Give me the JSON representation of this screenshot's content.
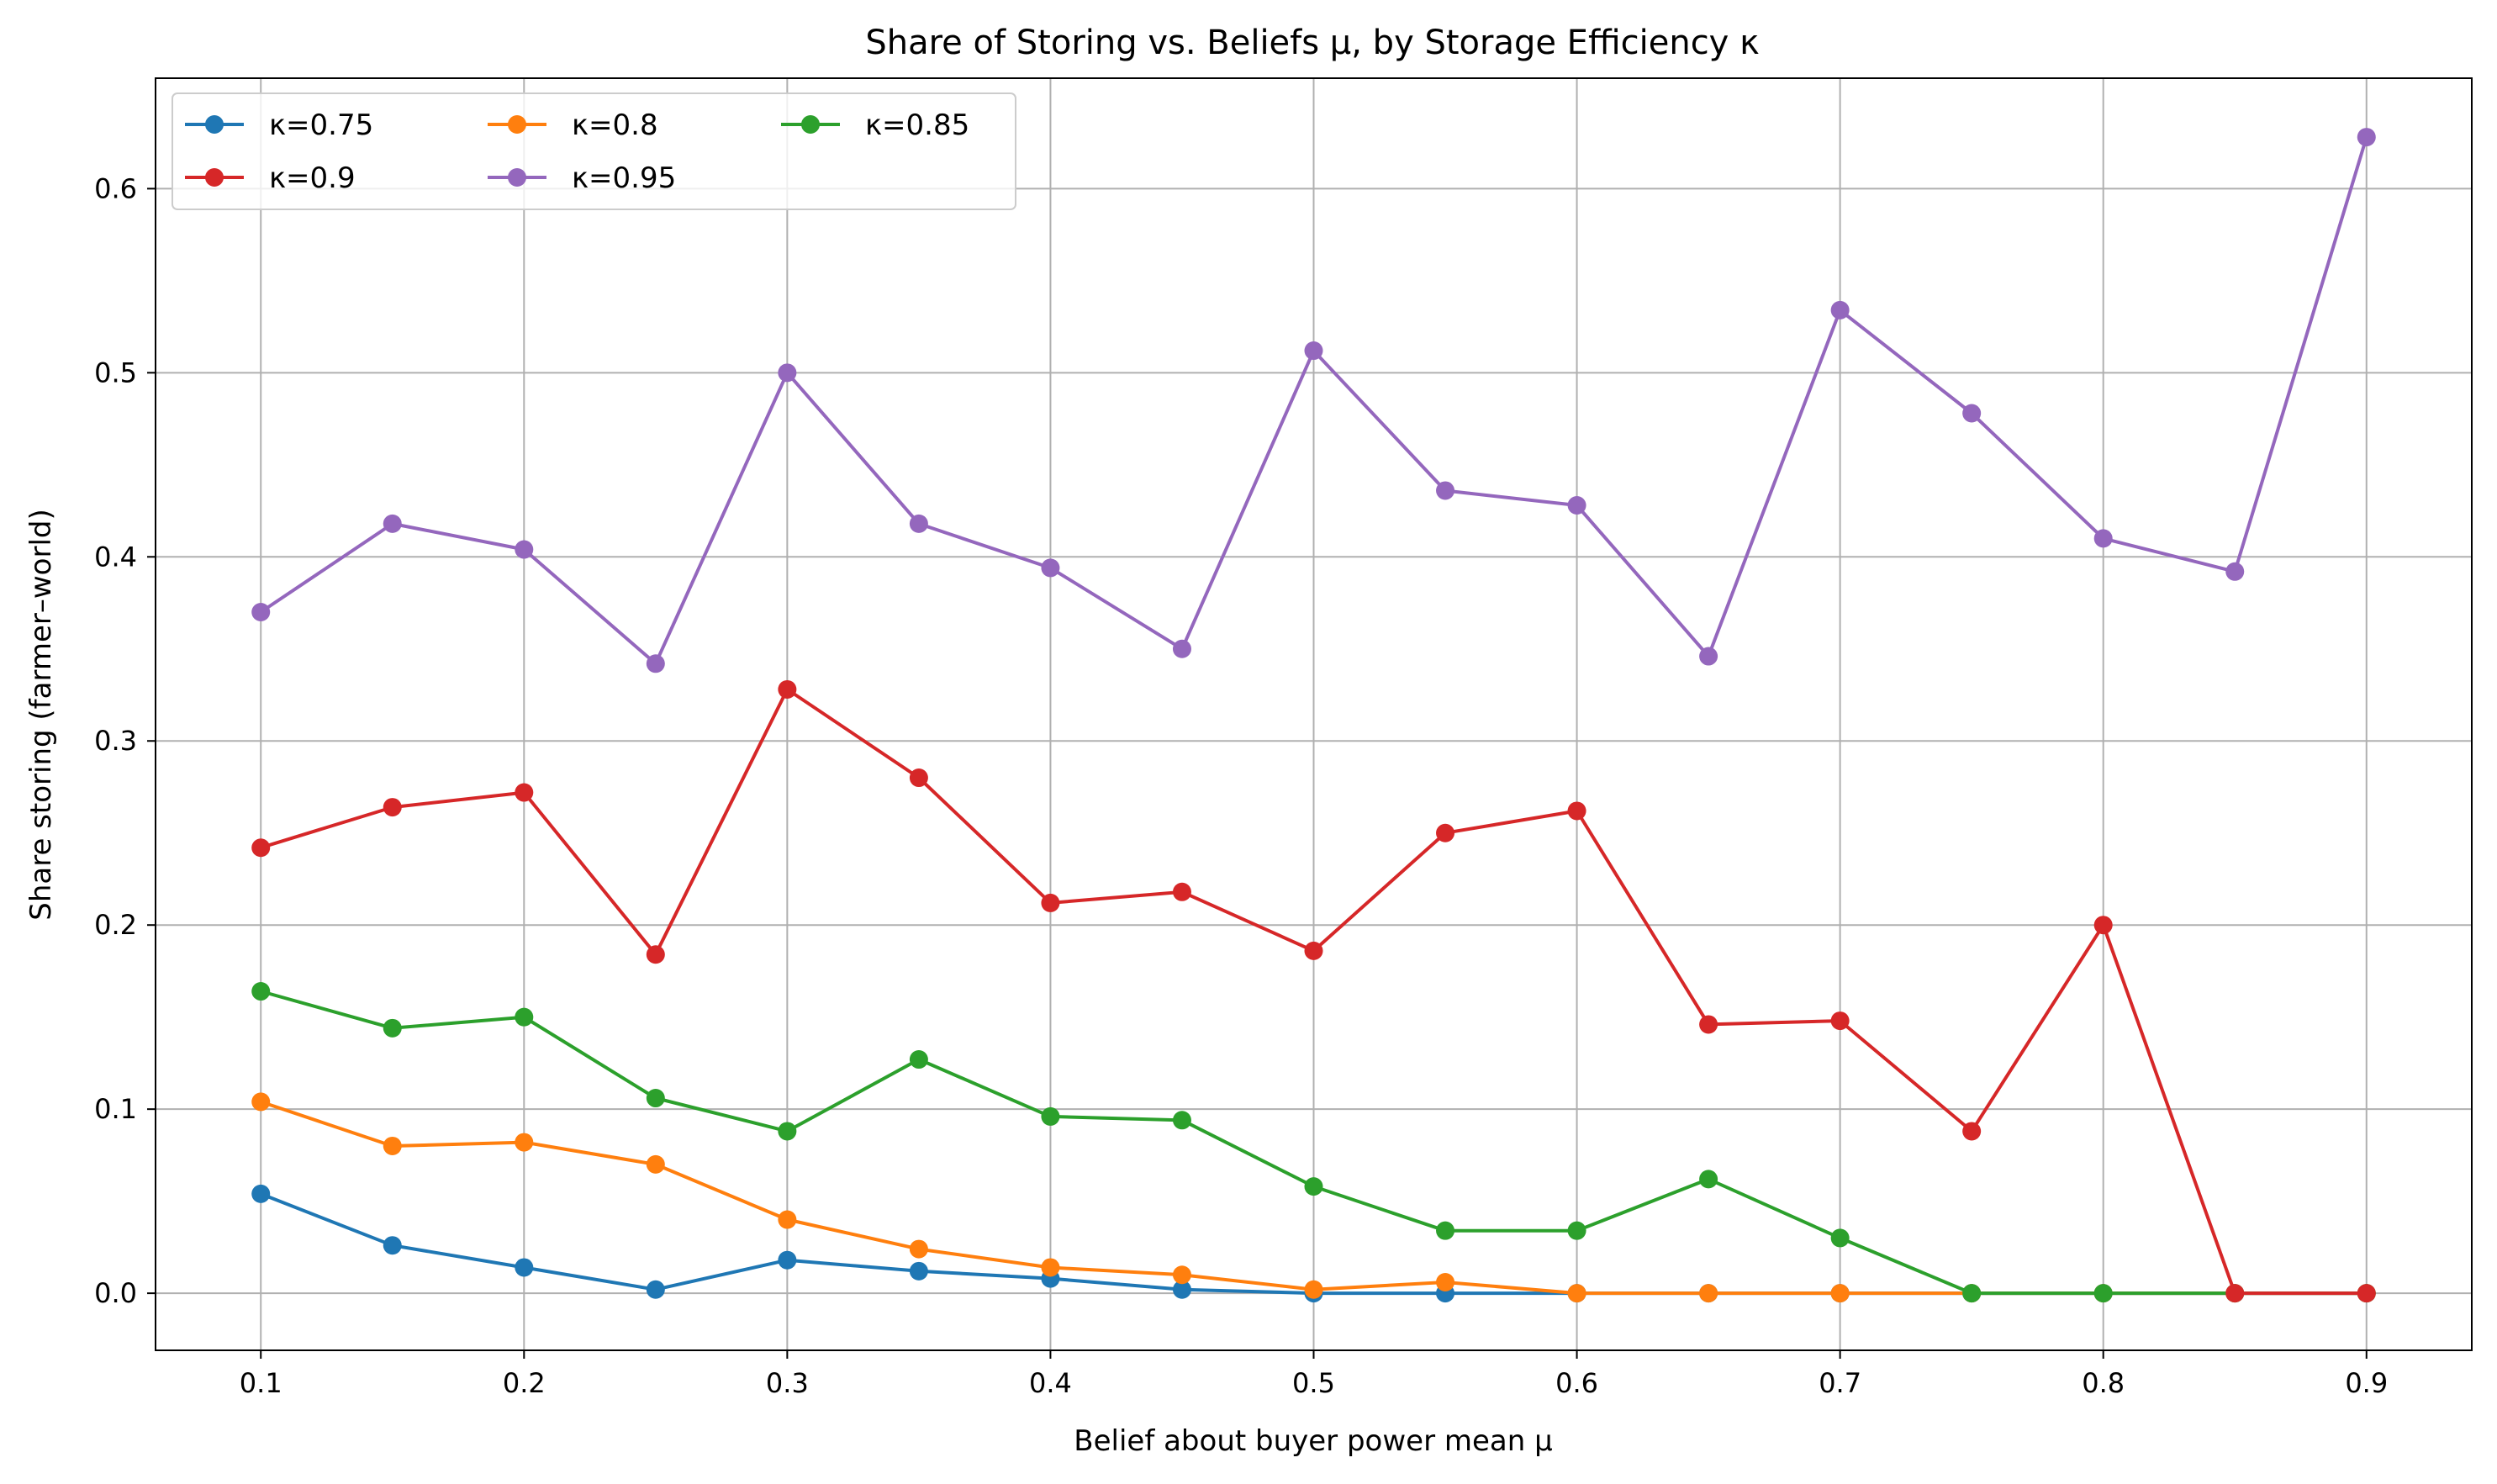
{
  "chart_data": {
    "type": "line",
    "title": "Share of Storing vs. Beliefs μ, by Storage Efficiency κ",
    "xlabel": "Belief about buyer power mean μ",
    "ylabel": "Share storing (farmer–world)",
    "xlim": [
      0.06,
      0.94
    ],
    "ylim": [
      -0.031,
      0.66
    ],
    "xticks": [
      0.1,
      0.2,
      0.3,
      0.4,
      0.5,
      0.6,
      0.7,
      0.8,
      0.9
    ],
    "xtick_labels": [
      "0.1",
      "0.2",
      "0.3",
      "0.4",
      "0.5",
      "0.6",
      "0.7",
      "0.8",
      "0.9"
    ],
    "yticks": [
      0.0,
      0.1,
      0.2,
      0.3,
      0.4,
      0.5,
      0.6
    ],
    "ytick_labels": [
      "0.0",
      "0.1",
      "0.2",
      "0.3",
      "0.4",
      "0.5",
      "0.6"
    ],
    "grid": true,
    "legend_position": "top-left",
    "legend_columns": 3,
    "x": [
      0.1,
      0.15,
      0.2,
      0.25,
      0.3,
      0.35,
      0.4,
      0.45,
      0.5,
      0.55,
      0.6,
      0.65,
      0.7,
      0.75,
      0.8,
      0.85,
      0.9
    ],
    "series": [
      {
        "name": "κ=0.75",
        "color": "#1f77b4",
        "values": [
          0.054,
          0.026,
          0.014,
          0.002,
          0.018,
          0.012,
          0.008,
          0.002,
          0.0,
          0.0,
          0.0,
          0.0,
          0.0,
          0.0,
          0.0,
          0.0,
          0.0
        ]
      },
      {
        "name": "κ=0.8",
        "color": "#ff7f0e",
        "values": [
          0.104,
          0.08,
          0.082,
          0.07,
          0.04,
          0.024,
          0.014,
          0.01,
          0.002,
          0.006,
          0.0,
          0.0,
          0.0,
          0.0,
          0.0,
          0.0,
          0.0
        ]
      },
      {
        "name": "κ=0.85",
        "color": "#2ca02c",
        "values": [
          0.164,
          0.144,
          0.15,
          0.106,
          0.088,
          0.127,
          0.096,
          0.094,
          0.058,
          0.034,
          0.034,
          0.062,
          0.03,
          0.0,
          0.0,
          0.0,
          0.0
        ]
      },
      {
        "name": "κ=0.9",
        "color": "#d62728",
        "values": [
          0.242,
          0.264,
          0.272,
          0.184,
          0.328,
          0.28,
          0.212,
          0.218,
          0.186,
          0.25,
          0.262,
          0.146,
          0.148,
          0.088,
          0.2,
          0.0,
          0.0
        ]
      },
      {
        "name": "κ=0.95",
        "color": "#9467bd",
        "values": [
          0.37,
          0.418,
          0.404,
          0.342,
          0.5,
          0.418,
          0.394,
          0.35,
          0.512,
          0.436,
          0.428,
          0.346,
          0.534,
          0.478,
          0.41,
          0.392,
          0.628
        ]
      }
    ]
  }
}
